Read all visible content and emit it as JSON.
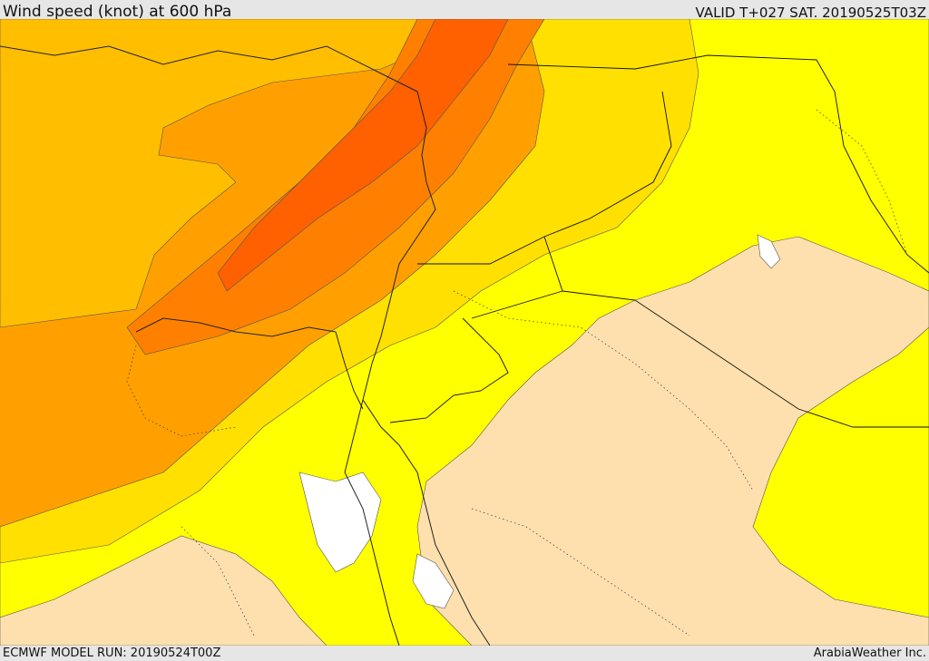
{
  "header": {
    "title": "Wind speed (knot) at 600 hPa",
    "valid_time": "VALID T+027 SAT. 20190525T03Z"
  },
  "footer": {
    "model_run": "ECMWF MODEL RUN: 20190524T00Z",
    "provider": "ArabiaWeather Inc."
  },
  "map": {
    "colors": {
      "calm": "#ffffff",
      "light": "#fde0ae",
      "moderate": "#ffff00",
      "fresh": "#ffe000",
      "strong": "#ffbe00",
      "very_strong": "#ffa000",
      "gale": "#ff8000",
      "storm": "#ff6000"
    }
  }
}
